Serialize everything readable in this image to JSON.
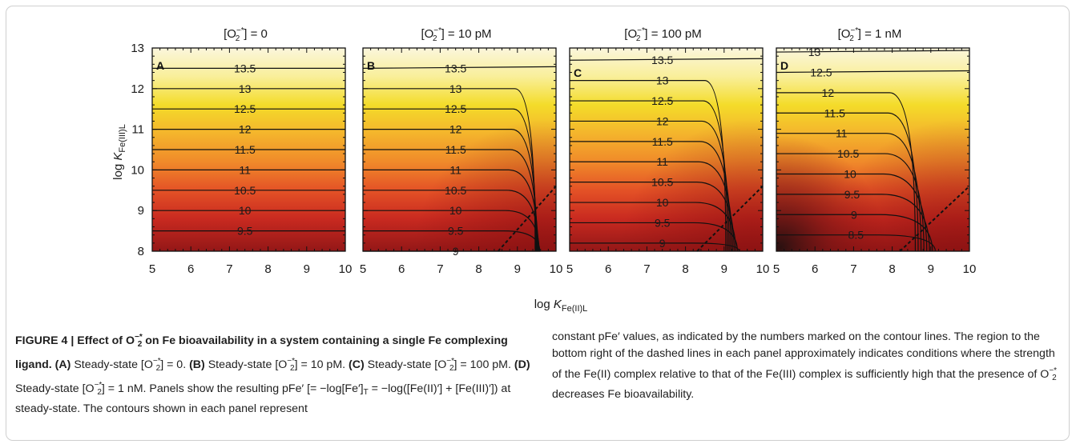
{
  "chart_data": [
    {
      "type": "heatmap",
      "panel": "A",
      "title": "[O2−*] = 0",
      "xlabel": "log KFe(II)L",
      "ylabel": "log KFe(III)L",
      "xlim": [
        5,
        10
      ],
      "ylim": [
        8,
        13
      ],
      "contours": [
        {
          "label": "9.5",
          "y": 8.5
        },
        {
          "label": "10",
          "y": 9.0
        },
        {
          "label": "10.5",
          "y": 9.5
        },
        {
          "label": "11",
          "y": 10.0
        },
        {
          "label": "11.5",
          "y": 10.5
        },
        {
          "label": "12",
          "y": 11.0
        },
        {
          "label": "12.5",
          "y": 11.5
        },
        {
          "label": "13",
          "y": 12.0
        },
        {
          "label": "13.5",
          "y": 12.5
        }
      ]
    },
    {
      "type": "heatmap",
      "panel": "B",
      "title": "[O2−*] = 10 pM",
      "xlabel": "log KFe(II)L",
      "xlim": [
        5,
        10
      ],
      "ylim": [
        8,
        13
      ],
      "contours": [
        {
          "label": "9",
          "y": 8.0
        },
        {
          "label": "9.5",
          "y": 8.5
        },
        {
          "label": "10",
          "y": 9.0
        },
        {
          "label": "10.5",
          "y": 9.5
        },
        {
          "label": "11",
          "y": 10.0
        },
        {
          "label": "11.5",
          "y": 10.5
        },
        {
          "label": "12",
          "y": 11.0
        },
        {
          "label": "12.5",
          "y": 11.5
        },
        {
          "label": "13",
          "y": 12.0
        },
        {
          "label": "13.5",
          "y": 12.5
        }
      ]
    },
    {
      "type": "heatmap",
      "panel": "C",
      "title": "[O2−*] = 100 pM",
      "xlabel": "log KFe(II)L",
      "xlim": [
        5,
        10
      ],
      "ylim": [
        8,
        13
      ],
      "contours": [
        {
          "label": "9",
          "y": 8.2
        },
        {
          "label": "9.5",
          "y": 8.7
        },
        {
          "label": "10",
          "y": 9.2
        },
        {
          "label": "10.5",
          "y": 9.7
        },
        {
          "label": "11",
          "y": 10.2
        },
        {
          "label": "11.5",
          "y": 10.7
        },
        {
          "label": "12",
          "y": 11.2
        },
        {
          "label": "12.5",
          "y": 11.7
        },
        {
          "label": "13",
          "y": 12.2
        },
        {
          "label": "13.5",
          "y": 12.7
        }
      ]
    },
    {
      "type": "heatmap",
      "panel": "D",
      "title": "[O2−*] = 1 nM",
      "xlabel": "log KFe(II)L",
      "xlim": [
        5,
        10
      ],
      "ylim": [
        8,
        13
      ],
      "contours": [
        {
          "label": "8.5",
          "y": 8.4
        },
        {
          "label": "9",
          "y": 8.9
        },
        {
          "label": "9.5",
          "y": 9.4
        },
        {
          "label": "10",
          "y": 9.9
        },
        {
          "label": "10.5",
          "y": 10.4
        },
        {
          "label": "11",
          "y": 10.9
        },
        {
          "label": "11.5",
          "y": 11.4
        },
        {
          "label": "12",
          "y": 11.9
        },
        {
          "label": "12.5",
          "y": 12.4
        },
        {
          "label": "13",
          "y": 12.9
        }
      ]
    }
  ],
  "caption": {
    "figure_label": "FIGURE 4 | Effect of O2−* on Fe bioavailability in a system containing a single Fe complexing ligand.",
    "left_text": "(A) Steady-state [O2−*] = 0. (B) Steady-state [O2−*] = 10 pM. (C) Steady-state [O2−*] = 100 pM. (D) Steady-state [O2−*] = 1 nM. Panels show the resulting pFe′ [= −log[Fe′]T = −log([Fe(II)′] + [Fe(III)′]) at steady-state. The contours shown in each panel represent",
    "right_text": "constant pFe′ values, as indicated by the numbers marked on the contour lines. The region to the bottom right of the dashed lines in each panel approximately indicates conditions where the strength of the Fe(II) complex relative to that of the Fe(III) complex is sufficiently high that the presence of O2−* decreases Fe bioavailability."
  }
}
